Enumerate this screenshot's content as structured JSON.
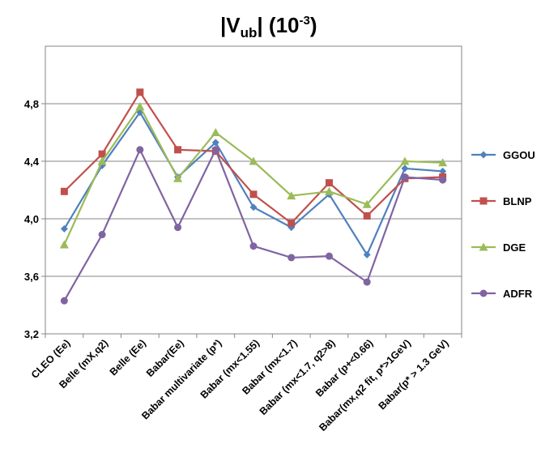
{
  "chart_data": {
    "type": "line",
    "title": "|V_ub|  (10^-3)",
    "title_parts": {
      "pre": "|V",
      "sub": "ub",
      "mid": "|  (10",
      "sup": "-3",
      "post": ")"
    },
    "categories": [
      "CLEO (Ee)",
      "Belle (mX,q2)",
      "Belle (Ee)",
      "Babar(Ee)",
      "Babar multivariate (p*)",
      "Babar (mx<1.55)",
      "Babar (mx<1.7)",
      "Babar (mx<1.7, q2>8)",
      "Babar (p+<0.66)",
      "Babar(mx,q2 fit, p*>1GeV)",
      "Babar(p* > 1.3 GeV)"
    ],
    "ylim": [
      3.2,
      5.2
    ],
    "yticks": [
      "3,2",
      "3,6",
      "4,0",
      "4,4",
      "4,8"
    ],
    "ytick_values": [
      3.2,
      3.6,
      4.0,
      4.4,
      4.8
    ],
    "grid": true,
    "legend": "right",
    "series": [
      {
        "name": "GGOU",
        "color": "#4f81bd",
        "marker": "diamond",
        "values": [
          3.93,
          4.37,
          4.74,
          4.29,
          4.53,
          4.08,
          3.94,
          4.17,
          3.75,
          4.35,
          4.33
        ]
      },
      {
        "name": "BLNP",
        "color": "#c0504d",
        "marker": "square",
        "values": [
          4.19,
          4.45,
          4.88,
          4.48,
          4.47,
          4.17,
          3.97,
          4.25,
          4.02,
          4.28,
          4.29
        ]
      },
      {
        "name": "DGE",
        "color": "#9bbb59",
        "marker": "triangle",
        "values": [
          3.82,
          4.4,
          4.78,
          4.28,
          4.6,
          4.4,
          4.16,
          4.19,
          4.1,
          4.4,
          4.39
        ]
      },
      {
        "name": "ADFR",
        "color": "#8064a2",
        "marker": "circle",
        "values": [
          3.43,
          3.89,
          4.48,
          3.94,
          4.48,
          3.81,
          3.73,
          3.74,
          3.56,
          4.29,
          4.27
        ]
      }
    ]
  }
}
